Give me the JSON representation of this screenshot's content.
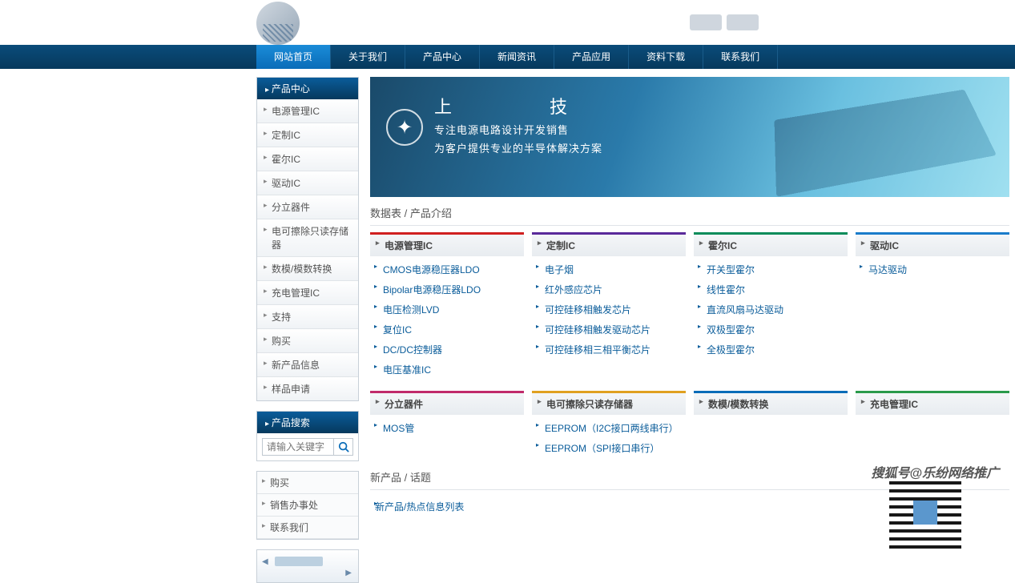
{
  "nav": {
    "items": [
      {
        "label": "网站首页",
        "active": true
      },
      {
        "label": "关于我们",
        "active": false
      },
      {
        "label": "产品中心",
        "active": false
      },
      {
        "label": "新闻资讯",
        "active": false
      },
      {
        "label": "产品应用",
        "active": false
      },
      {
        "label": "资料下载",
        "active": false
      },
      {
        "label": "联系我们",
        "active": false
      }
    ]
  },
  "sidebar": {
    "product_head": "产品中心",
    "products": [
      "电源管理IC",
      "定制IC",
      "霍尔IC",
      "驱动IC",
      "分立器件",
      "电可擦除只读存储器",
      "数模/模数转换",
      "充电管理IC",
      "支持",
      "购买",
      "新产品信息",
      "样品申请"
    ],
    "search_head": "产品搜索",
    "search_placeholder": "请输入关键字",
    "quick": [
      "购买",
      "销售办事处",
      "联系我们"
    ]
  },
  "banner": {
    "title": "上　　　　　技",
    "line1": "专注电源电路设计开发销售",
    "line2": "为客户提供专业的半导体解决方案"
  },
  "section1_title": "数据表 / 产品介绍",
  "categories": [
    {
      "head": "电源管理IC",
      "color": "#d02020",
      "links": [
        "CMOS电源稳压器LDO",
        "Bipolar电源稳压器LDO",
        "电压检测LVD",
        "复位IC",
        "DC/DC控制器",
        "电压基准IC"
      ]
    },
    {
      "head": "定制IC",
      "color": "#5a2a9a",
      "links": [
        "电子烟",
        "红外感应芯片",
        "可控硅移相触发芯片",
        "可控硅移相触发驱动芯片",
        "可控硅移相三相平衡芯片"
      ]
    },
    {
      "head": "霍尔IC",
      "color": "#0a8c5a",
      "links": [
        "开关型霍尔",
        "线性霍尔",
        "直流风扇马达驱动",
        "双极型霍尔",
        "全极型霍尔"
      ]
    },
    {
      "head": "驱动IC",
      "color": "#1a7cca",
      "links": [
        "马达驱动"
      ]
    },
    {
      "head": "分立器件",
      "color": "#c02a6a",
      "links": [
        "MOS管"
      ]
    },
    {
      "head": "电可擦除只读存储器",
      "color": "#e0a020",
      "links": [
        "EEPROM（I2C接口两线串行）",
        "EEPROM（SPI接口串行）"
      ]
    },
    {
      "head": "数模/模数转换",
      "color": "#0a6cb8",
      "links": []
    },
    {
      "head": "充电管理IC",
      "color": "#2a9a4a",
      "links": []
    }
  ],
  "section2_title": "新产品 / 话题",
  "hot_link": "新产品/热点信息列表",
  "watermark": "搜狐号@乐纷网络推广"
}
